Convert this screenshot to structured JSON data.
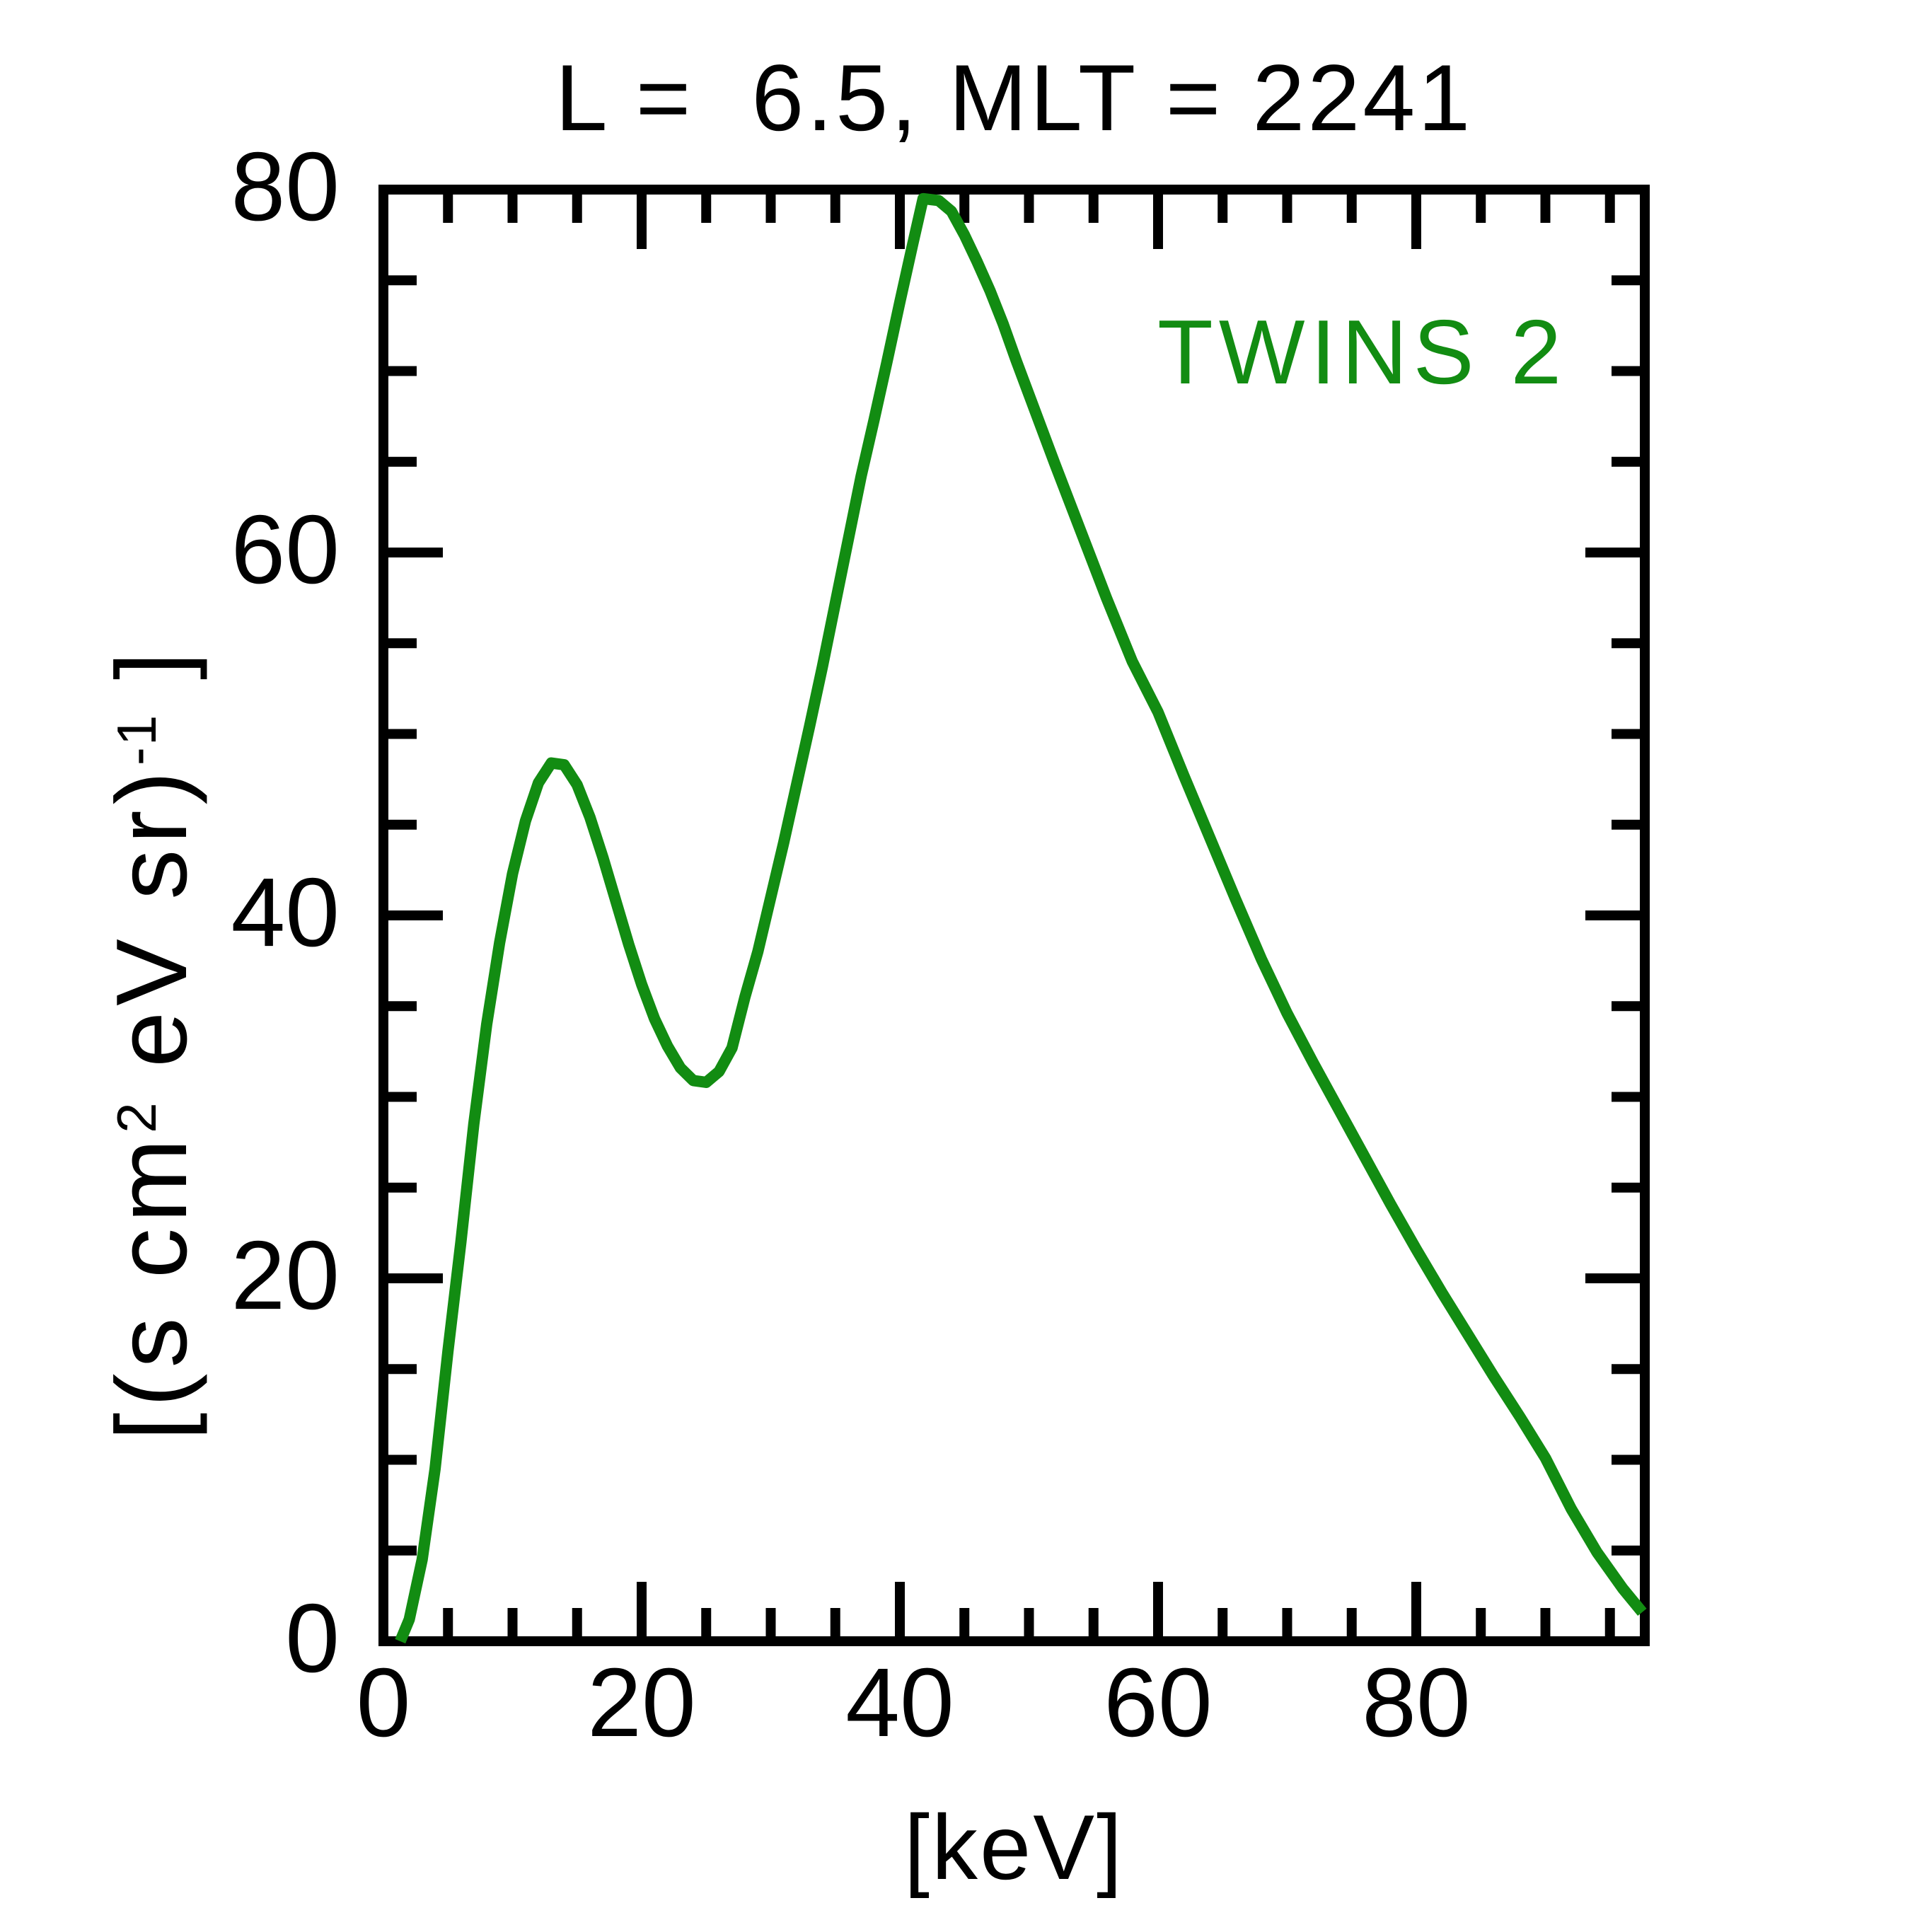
{
  "page": {
    "background": "#ffffff",
    "text_color": "#000000"
  },
  "chart_data": {
    "type": "line",
    "title": "L =  6.5, MLT = 2241",
    "xlabel": "[keV]",
    "ylabel": "[(s cm² eV sr)⁻¹ ]",
    "ylabel_parts": {
      "p1": "[(s cm",
      "sup1": "2",
      "p2": " eV sr)",
      "sup2": "-1",
      "p3": " ]"
    },
    "xlim": [
      0,
      97.7
    ],
    "ylim": [
      0,
      80
    ],
    "x_major_ticks": [
      0,
      20,
      40,
      60,
      80
    ],
    "y_major_ticks": [
      0,
      20,
      40,
      60,
      80
    ],
    "x_minor_tick_step": 5,
    "y_minor_tick_step": 5,
    "grid": false,
    "frame": true,
    "axis_color": "#000000",
    "background_color": "#ffffff",
    "legend": {
      "label": "TWINS 2",
      "color": "#128c12",
      "position": "upper-right-inside"
    },
    "series": [
      {
        "name": "TWINS 2",
        "color": "#128c12",
        "line_width": 16,
        "points": [
          [
            1.3,
            0
          ],
          [
            2,
            1.2
          ],
          [
            3,
            4.5
          ],
          [
            4,
            9.5
          ],
          [
            5,
            16
          ],
          [
            6,
            22
          ],
          [
            7,
            28.5
          ],
          [
            8,
            34
          ],
          [
            9,
            38.5
          ],
          [
            10,
            42.3
          ],
          [
            11,
            45.2
          ],
          [
            12,
            47.3
          ],
          [
            13,
            48.4
          ],
          [
            14,
            48.3
          ],
          [
            15,
            47.2
          ],
          [
            16,
            45.4
          ],
          [
            17,
            43.2
          ],
          [
            18,
            40.8
          ],
          [
            19,
            38.4
          ],
          [
            20,
            36.2
          ],
          [
            21,
            34.3
          ],
          [
            22,
            32.8
          ],
          [
            23,
            31.6
          ],
          [
            24,
            30.9
          ],
          [
            25,
            30.8
          ],
          [
            26,
            31.4
          ],
          [
            27,
            32.7
          ],
          [
            28,
            35.5
          ],
          [
            29,
            38
          ],
          [
            30,
            41
          ],
          [
            31,
            44
          ],
          [
            32,
            47.2
          ],
          [
            33,
            50.4
          ],
          [
            34,
            53.7
          ],
          [
            35,
            57.2
          ],
          [
            36,
            60.7
          ],
          [
            37,
            64.2
          ],
          [
            38,
            67.3
          ],
          [
            39,
            70.5
          ],
          [
            40,
            73.8
          ],
          [
            41,
            77
          ],
          [
            41.8,
            79.5
          ],
          [
            43,
            79.4
          ],
          [
            44,
            78.8
          ],
          [
            45,
            77.5
          ],
          [
            46,
            76
          ],
          [
            47,
            74.4
          ],
          [
            48,
            72.6
          ],
          [
            49,
            70.6
          ],
          [
            50,
            68.7
          ],
          [
            52,
            64.9
          ],
          [
            54,
            61.2
          ],
          [
            56,
            57.5
          ],
          [
            58,
            54
          ],
          [
            60,
            51.2
          ],
          [
            62,
            47.7
          ],
          [
            64,
            44.3
          ],
          [
            66,
            40.9
          ],
          [
            68,
            37.6
          ],
          [
            70,
            34.6
          ],
          [
            72,
            31.9
          ],
          [
            74,
            29.3
          ],
          [
            76,
            26.7
          ],
          [
            78,
            24.1
          ],
          [
            80,
            21.6
          ],
          [
            82,
            19.2
          ],
          [
            84,
            16.9
          ],
          [
            86,
            14.6
          ],
          [
            88,
            12.4
          ],
          [
            90,
            10.1
          ],
          [
            92,
            7.3
          ],
          [
            94,
            4.9
          ],
          [
            96,
            2.9
          ],
          [
            97.5,
            1.6
          ]
        ]
      }
    ]
  }
}
